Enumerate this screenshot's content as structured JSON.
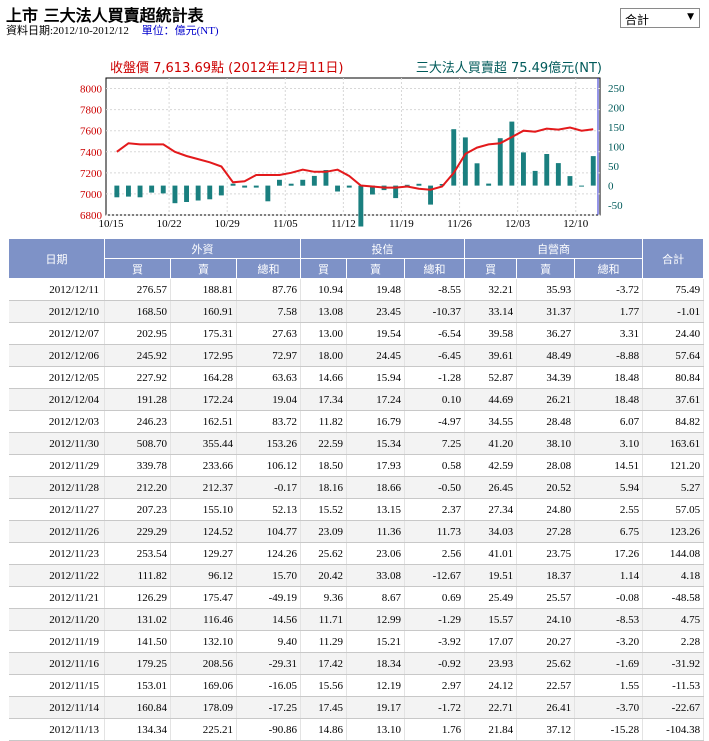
{
  "page": {
    "title": "上市 三大法人買賣超統計表",
    "date_label": "資料日期:2012/10-2012/12",
    "unit_label": "單位：億元(NT)",
    "selector_value": "合計"
  },
  "colors": {
    "close_line": "#e31a1c",
    "bar": "#1a7f7f",
    "left_axis_text": "#cc0000",
    "right_axis_text": "#005a5a",
    "header_bg": "#7e92c7"
  },
  "chart_data": {
    "type": "bar",
    "left_caption": "收盤價 7,613.69點 (2012年12月11日)",
    "right_caption": "三大法人買賣超 75.49億元(NT)",
    "x_ticks": [
      "10/15",
      "10/22",
      "10/29",
      "11/05",
      "11/12",
      "11/19",
      "11/26",
      "12/03",
      "12/10"
    ],
    "y_left": {
      "ticks": [
        6800,
        7000,
        7200,
        7400,
        7600,
        7800,
        8000
      ],
      "lim": [
        6800,
        8100
      ]
    },
    "y_right": {
      "ticks": [
        -50,
        0,
        50,
        100,
        150,
        200,
        250
      ],
      "lim": [
        -75,
        275
      ]
    },
    "dates": [
      "10/15",
      "10/16",
      "10/17",
      "10/18",
      "10/19",
      "10/22",
      "10/23",
      "10/24",
      "10/25",
      "10/26",
      "10/29",
      "10/30",
      "10/31",
      "11/01",
      "11/02",
      "11/05",
      "11/06",
      "11/07",
      "11/08",
      "11/09",
      "11/12",
      "11/13",
      "11/14",
      "11/15",
      "11/16",
      "11/19",
      "11/20",
      "11/21",
      "11/22",
      "11/23",
      "11/26",
      "11/27",
      "11/28",
      "11/29",
      "11/30",
      "12/03",
      "12/04",
      "12/05",
      "12/06",
      "12/07",
      "12/10",
      "12/11"
    ],
    "net_buy": [
      -30,
      -28,
      -30,
      -18,
      -20,
      -45,
      -42,
      -38,
      -35,
      -25,
      5,
      -5,
      -5,
      -40,
      15,
      5,
      15,
      25,
      40,
      -15,
      -5,
      -104.38,
      -22.67,
      -11.53,
      -31.92,
      2.28,
      4.75,
      -48.58,
      4.18,
      144.08,
      123.26,
      57.05,
      5.27,
      121.2,
      163.61,
      84.82,
      37.61,
      80.84,
      57.64,
      24.4,
      -1.01,
      75.49
    ],
    "close": [
      7400,
      7480,
      7470,
      7470,
      7470,
      7400,
      7360,
      7330,
      7300,
      7260,
      7110,
      7120,
      7180,
      7180,
      7180,
      7200,
      7230,
      7210,
      7210,
      7230,
      7170,
      7080,
      7070,
      7060,
      7060,
      7070,
      7050,
      7040,
      7070,
      7200,
      7380,
      7440,
      7470,
      7480,
      7540,
      7600,
      7590,
      7620,
      7610,
      7630,
      7600,
      7614
    ]
  },
  "table": {
    "headers": {
      "date": "日期",
      "foreign": "外資",
      "trust": "投信",
      "dealer": "自營商",
      "total": "合計",
      "buy": "買",
      "sell": "賣",
      "net": "總和"
    },
    "rows": [
      [
        "2012/12/11",
        "276.57",
        "188.81",
        "87.76",
        "10.94",
        "19.48",
        "-8.55",
        "32.21",
        "35.93",
        "-3.72",
        "75.49"
      ],
      [
        "2012/12/10",
        "168.50",
        "160.91",
        "7.58",
        "13.08",
        "23.45",
        "-10.37",
        "33.14",
        "31.37",
        "1.77",
        "-1.01"
      ],
      [
        "2012/12/07",
        "202.95",
        "175.31",
        "27.63",
        "13.00",
        "19.54",
        "-6.54",
        "39.58",
        "36.27",
        "3.31",
        "24.40"
      ],
      [
        "2012/12/06",
        "245.92",
        "172.95",
        "72.97",
        "18.00",
        "24.45",
        "-6.45",
        "39.61",
        "48.49",
        "-8.88",
        "57.64"
      ],
      [
        "2012/12/05",
        "227.92",
        "164.28",
        "63.63",
        "14.66",
        "15.94",
        "-1.28",
        "52.87",
        "34.39",
        "18.48",
        "80.84"
      ],
      [
        "2012/12/04",
        "191.28",
        "172.24",
        "19.04",
        "17.34",
        "17.24",
        "0.10",
        "44.69",
        "26.21",
        "18.48",
        "37.61"
      ],
      [
        "2012/12/03",
        "246.23",
        "162.51",
        "83.72",
        "11.82",
        "16.79",
        "-4.97",
        "34.55",
        "28.48",
        "6.07",
        "84.82"
      ],
      [
        "2012/11/30",
        "508.70",
        "355.44",
        "153.26",
        "22.59",
        "15.34",
        "7.25",
        "41.20",
        "38.10",
        "3.10",
        "163.61"
      ],
      [
        "2012/11/29",
        "339.78",
        "233.66",
        "106.12",
        "18.50",
        "17.93",
        "0.58",
        "42.59",
        "28.08",
        "14.51",
        "121.20"
      ],
      [
        "2012/11/28",
        "212.20",
        "212.37",
        "-0.17",
        "18.16",
        "18.66",
        "-0.50",
        "26.45",
        "20.52",
        "5.94",
        "5.27"
      ],
      [
        "2012/11/27",
        "207.23",
        "155.10",
        "52.13",
        "15.52",
        "13.15",
        "2.37",
        "27.34",
        "24.80",
        "2.55",
        "57.05"
      ],
      [
        "2012/11/26",
        "229.29",
        "124.52",
        "104.77",
        "23.09",
        "11.36",
        "11.73",
        "34.03",
        "27.28",
        "6.75",
        "123.26"
      ],
      [
        "2012/11/23",
        "253.54",
        "129.27",
        "124.26",
        "25.62",
        "23.06",
        "2.56",
        "41.01",
        "23.75",
        "17.26",
        "144.08"
      ],
      [
        "2012/11/22",
        "111.82",
        "96.12",
        "15.70",
        "20.42",
        "33.08",
        "-12.67",
        "19.51",
        "18.37",
        "1.14",
        "4.18"
      ],
      [
        "2012/11/21",
        "126.29",
        "175.47",
        "-49.19",
        "9.36",
        "8.67",
        "0.69",
        "25.49",
        "25.57",
        "-0.08",
        "-48.58"
      ],
      [
        "2012/11/20",
        "131.02",
        "116.46",
        "14.56",
        "11.71",
        "12.99",
        "-1.29",
        "15.57",
        "24.10",
        "-8.53",
        "4.75"
      ],
      [
        "2012/11/19",
        "141.50",
        "132.10",
        "9.40",
        "11.29",
        "15.21",
        "-3.92",
        "17.07",
        "20.27",
        "-3.20",
        "2.28"
      ],
      [
        "2012/11/16",
        "179.25",
        "208.56",
        "-29.31",
        "17.42",
        "18.34",
        "-0.92",
        "23.93",
        "25.62",
        "-1.69",
        "-31.92"
      ],
      [
        "2012/11/15",
        "153.01",
        "169.06",
        "-16.05",
        "15.56",
        "12.19",
        "2.97",
        "24.12",
        "22.57",
        "1.55",
        "-11.53"
      ],
      [
        "2012/11/14",
        "160.84",
        "178.09",
        "-17.25",
        "17.45",
        "19.17",
        "-1.72",
        "22.71",
        "26.41",
        "-3.70",
        "-22.67"
      ],
      [
        "2012/11/13",
        "134.34",
        "225.21",
        "-90.86",
        "14.86",
        "13.10",
        "1.76",
        "21.84",
        "37.12",
        "-15.28",
        "-104.38"
      ]
    ]
  }
}
